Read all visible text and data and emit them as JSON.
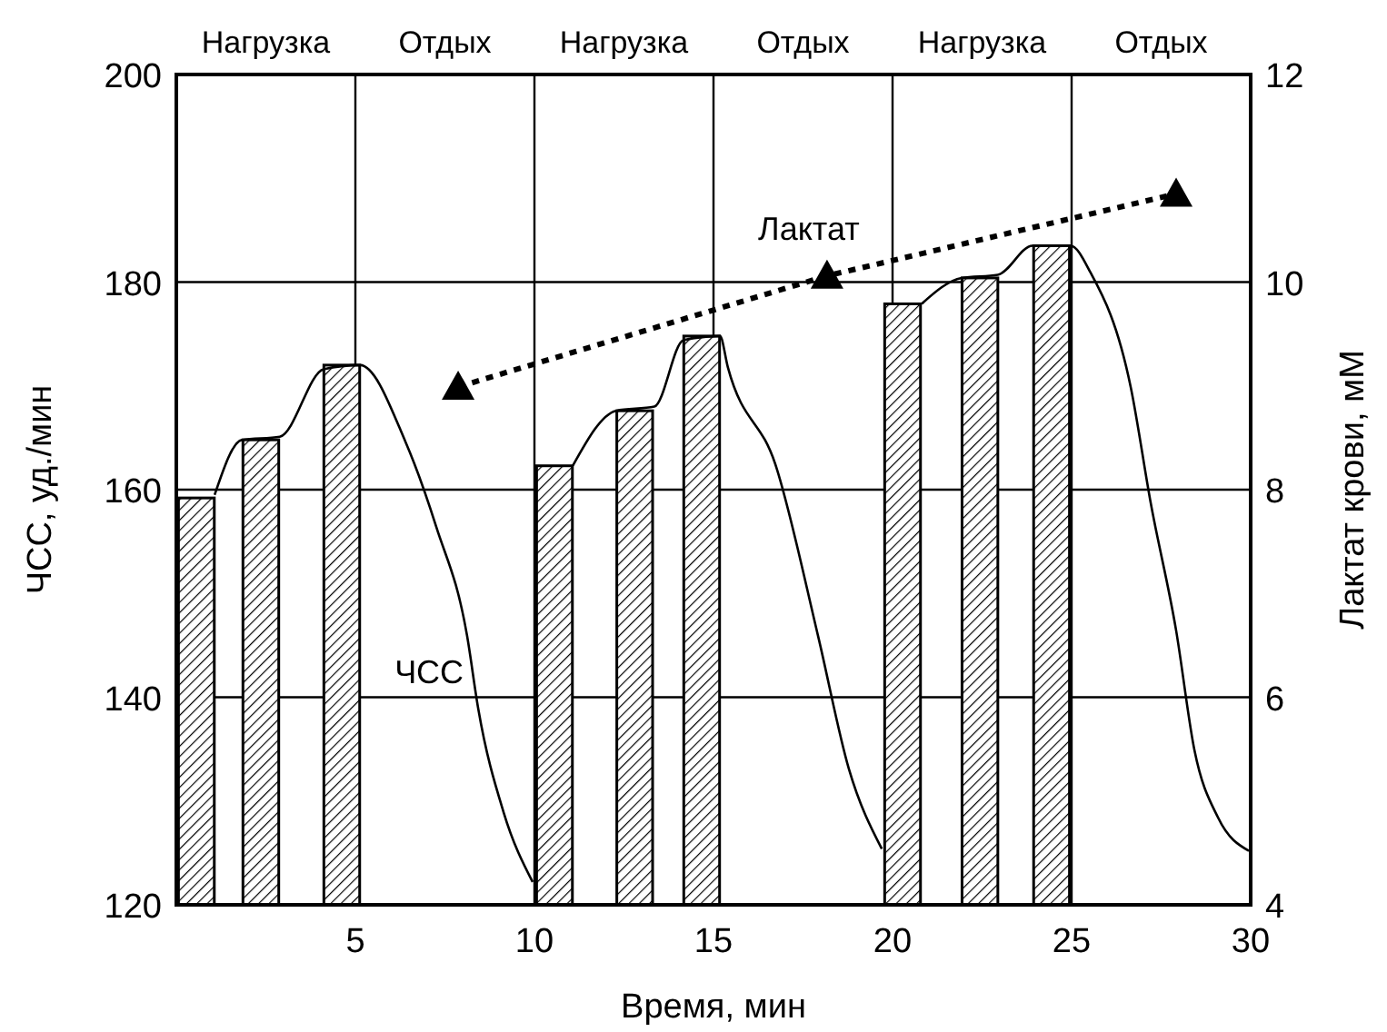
{
  "chart_data": {
    "type": "bar",
    "xlabel": "Время, мин",
    "ylabel": "ЧСС, уд./мин",
    "y2label": "Лактат крови, мМ",
    "xlim": [
      0,
      30
    ],
    "xticks": [
      5,
      10,
      15,
      20,
      25,
      30
    ],
    "annotations": [
      "Нагрузка",
      "Отдых",
      "Нагрузка",
      "Отдых",
      "Нагрузка",
      "Отдых"
    ],
    "ylim": [
      120,
      200
    ],
    "yticks": [
      120,
      140,
      160,
      180,
      200
    ],
    "y2lim": [
      4,
      12
    ],
    "y2ticks": [
      4,
      6,
      8,
      10,
      12
    ],
    "grid": true,
    "legend": false,
    "series": [
      {
        "color": "#000000",
        "x": [
          0.56,
          2.36,
          4.62,
          10.56,
          12.8,
          14.67,
          20.28,
          22.44,
          24.44
        ],
        "values": [
          159.2,
          164.8,
          172,
          162.3,
          167.6,
          174.8,
          177.9,
          180.4,
          183.5
        ]
      },
      {
        "type": "line",
        "name": "ЧСС",
        "color": "#000000",
        "marker": "none",
        "line_style": "solid",
        "x": [
          1.07,
          1.83,
          2.89,
          4.11,
          5.13,
          6.4,
          7.26,
          8.12,
          8.43,
          9.14,
          9.95,
          10.5,
          11.07,
          12.28,
          13.35,
          14.16,
          15.18,
          15.4,
          16.75,
          17.92,
          18.78,
          19.7,
          20.2,
          20.81,
          21.93,
          22.94,
          23.91,
          24.97,
          25.53,
          26.65,
          27.21,
          27.92,
          28.43,
          29.09,
          29.95
        ],
        "values": [
          159.5,
          164.8,
          165.1,
          171.6,
          172,
          164.6,
          156.4,
          145.9,
          138.9,
          128.9,
          122.2,
          null,
          162.3,
          167.6,
          168,
          174.4,
          174.8,
          171.8,
          162.2,
          145.9,
          133.1,
          125.4,
          null,
          177.9,
          180.4,
          180.7,
          183.5,
          183.5,
          180.9,
          169.9,
          158.7,
          146.4,
          134.9,
          128.4,
          125.2
        ]
      },
      {
        "type": "line",
        "name": "Лактат",
        "axis": "y2",
        "color": "#000000",
        "marker": "triangle",
        "line_style": "dotted",
        "x": [
          7.87,
          18.17,
          27.92
        ],
        "values": [
          8.99,
          10.06,
          10.85
        ]
      }
    ]
  }
}
